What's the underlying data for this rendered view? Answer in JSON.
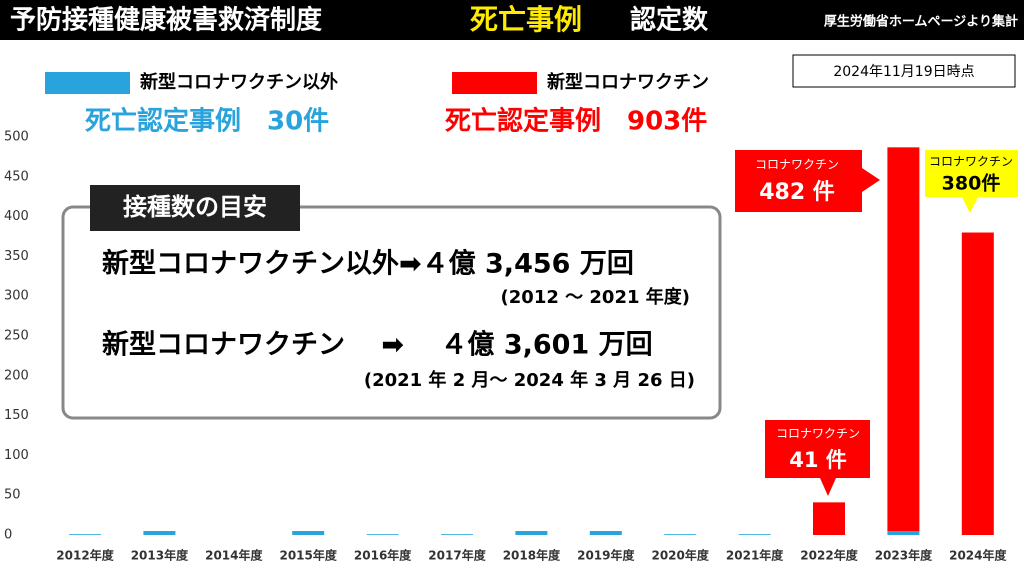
{
  "header": {
    "title": "予防接種健康被害救済制度",
    "title_highlight": "死亡事例",
    "title_end": "認定数",
    "source": "厚生労働省ホームページより集計",
    "date": "2024年11月19日時点"
  },
  "totals": [
    "死亡認定事例　30件",
    "死亡認定事例　903件"
  ],
  "info_box": {
    "heading": "接種数の目安",
    "rows": [
      "新型コロナワクチン以外➡４億 3,456 万回",
      "(2012 ～ 2021 年度)",
      "新型コロナワクチン　 ➡　 ４億 3,601 万回",
      "(2021 年 2 月～ 2024 年 3 月 26 日)"
    ]
  },
  "chart_data": {
    "type": "stacked_bar",
    "categories": [
      "2012年度",
      "2013年度",
      "2014年度",
      "2015年度",
      "2016年度",
      "2017年度",
      "2018年度",
      "2019年度",
      "2020年度",
      "2021年度",
      "2022年度",
      "2023年度",
      "2024年度"
    ],
    "series": [
      {
        "name": "新型コロナワクチン以外",
        "color": "#29a3dc",
        "values": [
          1,
          5,
          0,
          5,
          1,
          1,
          5,
          5,
          1,
          1,
          0,
          5,
          0
        ]
      },
      {
        "name": "新型コロナワクチン",
        "color": "#ff0000",
        "values": [
          0,
          0,
          0,
          0,
          0,
          0,
          0,
          0,
          0,
          0,
          41,
          482,
          380
        ],
        "value_labels": [
          null,
          null,
          null,
          null,
          null,
          null,
          null,
          null,
          null,
          null,
          "41 件",
          "482 件",
          "380件"
        ],
        "value_label_titles": [
          null,
          null,
          null,
          null,
          null,
          null,
          null,
          null,
          null,
          null,
          "コロナワクチン",
          "コロナワクチン",
          "コロナワクチン"
        ]
      }
    ],
    "ylim": [
      0,
      500
    ],
    "yticks": [
      0,
      50,
      100,
      150,
      200,
      250,
      300,
      350,
      400,
      450,
      500
    ],
    "grid": false
  }
}
